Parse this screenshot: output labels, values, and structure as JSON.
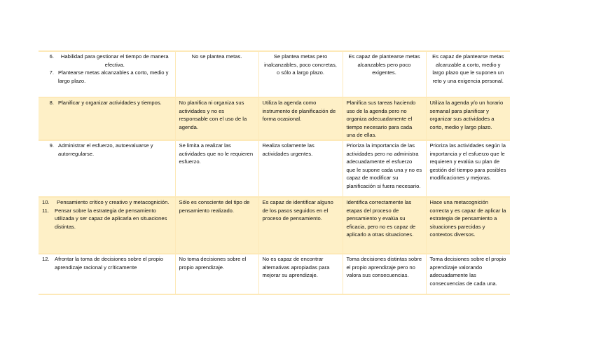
{
  "rows": [
    {
      "criterion": [
        {
          "num": "6.",
          "text": "Habilidad para gestionar el tiempo de manera efectiva.",
          "centered": true
        },
        {
          "num": "7.",
          "text": "Plantearse metas alcanzables a corto, medio y largo plazo."
        }
      ],
      "levels": [
        "No se plantea metas.",
        "Se plantea metas pero inalcanzables, poco concretas, o sólo a largo plazo.",
        "Es capaz de plantearse metas alcanzables pero poco exigentes.",
        "Es capaz de plantearse metas alcanzable a corto, medio y largo plazo que le suponen un reto y una exigencia personal."
      ],
      "centered_levels": true,
      "shaded": false
    },
    {
      "criterion": [
        {
          "num": "8.",
          "text": "Planificar y organizar actividades y tiempos."
        }
      ],
      "levels": [
        "No planifica ni organiza sus actividades y no es responsable con el uso de la agenda.",
        "Utiliza la agenda como instrumento de planificación de forma ocasional.",
        "Planifica sus tareas haciendo uso de la agenda pero no organiza adecuadamente el tiempo necesario para cada una de ellas.",
        "Utiliza la agenda y/o un horario semanal para planificar y organizar sus actividades a corto, medio y largo plazo."
      ],
      "shaded": true
    },
    {
      "criterion": [
        {
          "num": "9.",
          "text": "Administrar el esfuerzo, autoevaluarse y autorregularse."
        }
      ],
      "levels": [
        "Se limita a realizar las actividades que no le requieren esfuerzo.",
        "Realiza solamente las actividades urgentes.",
        "Prioriza la importancia de las actividades pero no administra adecuadamente el esfuerzo que le supone cada una y no es capaz de modificar su planificación si fuera necesario.",
        "Prioriza las actividades según la importancia y el esfuerzo que le requieren y evalúa su plan de gestión del tiempo para posibles modificaciones y mejoras."
      ],
      "shaded": false
    },
    {
      "criterion": [
        {
          "num": "10.",
          "text": "Pensamiento crítico y creativo y metacognición.",
          "centered": true
        },
        {
          "num": "11.",
          "text": "Pensar sobre la estrategia de pensamiento utilizada y ser capaz de aplicarla en situaciones distintas."
        }
      ],
      "levels": [
        "Sólo es consciente del tipo de pensamiento realizado.",
        "Es capaz de identificar alguno de los pasos seguidos en el proceso de pensamiento.",
        "Identifica correctamente las etapas del proceso de pensamiento y evalúa su eficacia, pero no es capaz de aplicarlo a otras situaciones.",
        "Hace una metacognición correcta y es capaz de aplicar la estrategia de pensamiento a situaciones parecidas y contextos diversos."
      ],
      "shaded": true
    },
    {
      "criterion": [
        {
          "num": "12.",
          "text": "Afrontar la toma de decisiones sobre el propio aprendizaje racional y críticamente"
        }
      ],
      "levels": [
        "No toma decisiones sobre el propio aprendizaje.",
        "No es capaz de encontrar alternativas apropiadas para mejorar su aprendizaje.",
        "Toma decisiones distintas sobre el propio aprendizaje pero no valora sus consecuencias.",
        "Toma decisiones sobre el propio aprendizaje valorando adecuadamente las consecuencias de cada una."
      ],
      "shaded": false
    }
  ],
  "colors": {
    "border": "#fde9b8",
    "shade": "#fef0c7"
  }
}
